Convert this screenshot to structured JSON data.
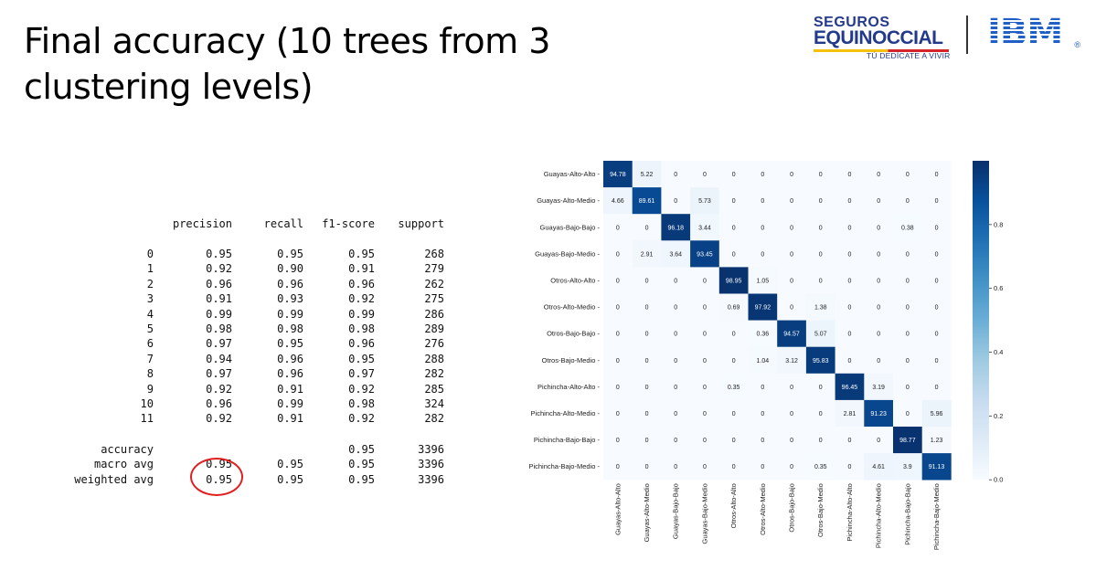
{
  "slide": {
    "title_line1": "Final accuracy (10 trees from 3",
    "title_line2": "clustering levels)"
  },
  "logos": {
    "seguros_top": "SEGUROS",
    "seguros_main": "EQUINOCCIAL",
    "seguros_tagline": "TÚ DEDÍCATE A VIVIR",
    "ibm": "IBM",
    "ibm_reg": "®"
  },
  "report": {
    "headers": [
      "precision",
      "recall",
      "f1-score",
      "support"
    ],
    "rows": [
      [
        "0",
        "0.95",
        "0.95",
        "0.95",
        "268"
      ],
      [
        "1",
        "0.92",
        "0.90",
        "0.91",
        "279"
      ],
      [
        "2",
        "0.96",
        "0.96",
        "0.96",
        "262"
      ],
      [
        "3",
        "0.91",
        "0.93",
        "0.92",
        "275"
      ],
      [
        "4",
        "0.99",
        "0.99",
        "0.99",
        "286"
      ],
      [
        "5",
        "0.98",
        "0.98",
        "0.98",
        "289"
      ],
      [
        "6",
        "0.97",
        "0.95",
        "0.96",
        "276"
      ],
      [
        "7",
        "0.94",
        "0.96",
        "0.95",
        "288"
      ],
      [
        "8",
        "0.97",
        "0.96",
        "0.97",
        "282"
      ],
      [
        "9",
        "0.92",
        "0.91",
        "0.92",
        "285"
      ],
      [
        "10",
        "0.96",
        "0.99",
        "0.98",
        "324"
      ],
      [
        "11",
        "0.92",
        "0.91",
        "0.92",
        "282"
      ]
    ],
    "summary": [
      [
        "accuracy",
        "",
        "",
        "0.95",
        "3396"
      ],
      [
        "macro avg",
        "0.95",
        "0.95",
        "0.95",
        "3396"
      ],
      [
        "weighted avg",
        "0.95",
        "0.95",
        "0.95",
        "3396"
      ]
    ]
  },
  "chart_data": {
    "type": "heatmap",
    "labels": [
      "Guayas-Alto-Alto",
      "Guayas-Alto-Medio",
      "Guayas-Bajo-Bajo",
      "Guayas-Bajo-Medio",
      "Otros-Alto-Alto",
      "Otros-Alto-Medio",
      "Otros-Bajo-Bajo",
      "Otros-Bajo-Medio",
      "Pichincha-Alto-Alto",
      "Pichincha-Alto-Medio",
      "Pichincha-Bajo-Bajo",
      "Pichincha-Bajo-Medio"
    ],
    "matrix": [
      [
        94.78,
        5.22,
        0,
        0,
        0,
        0,
        0,
        0,
        0,
        0,
        0,
        0
      ],
      [
        4.66,
        89.61,
        0,
        5.73,
        0,
        0,
        0,
        0,
        0,
        0,
        0,
        0
      ],
      [
        0,
        0,
        96.18,
        3.44,
        0,
        0,
        0,
        0,
        0,
        0,
        0.38,
        0
      ],
      [
        0,
        2.91,
        3.64,
        93.45,
        0,
        0,
        0,
        0,
        0,
        0,
        0,
        0
      ],
      [
        0,
        0,
        0,
        0,
        98.95,
        1.05,
        0,
        0,
        0,
        0,
        0,
        0
      ],
      [
        0,
        0,
        0,
        0,
        0.69,
        97.92,
        0,
        1.38,
        0,
        0,
        0,
        0
      ],
      [
        0,
        0,
        0,
        0,
        0,
        0.36,
        94.57,
        5.07,
        0,
        0,
        0,
        0
      ],
      [
        0,
        0,
        0,
        0,
        0,
        1.04,
        3.12,
        95.83,
        0,
        0,
        0,
        0
      ],
      [
        0,
        0,
        0,
        0,
        0.35,
        0,
        0,
        0,
        96.45,
        3.19,
        0,
        0
      ],
      [
        0,
        0,
        0,
        0,
        0,
        0,
        0,
        0,
        2.81,
        91.23,
        0,
        5.96
      ],
      [
        0,
        0,
        0,
        0,
        0,
        0,
        0,
        0,
        0,
        0,
        98.77,
        1.23
      ],
      [
        0,
        0,
        0,
        0,
        0,
        0,
        0,
        0.35,
        0,
        4.61,
        3.9,
        91.13
      ]
    ],
    "colorbar": {
      "ticks": [
        "0.0",
        "0.2",
        "0.4",
        "0.6",
        "0.8"
      ],
      "range": [
        0,
        1
      ],
      "colormap": "Blues"
    },
    "colors": {
      "low": "#f7fbff",
      "high": "#08306b"
    }
  },
  "highlight": {
    "color": "#e02020"
  }
}
